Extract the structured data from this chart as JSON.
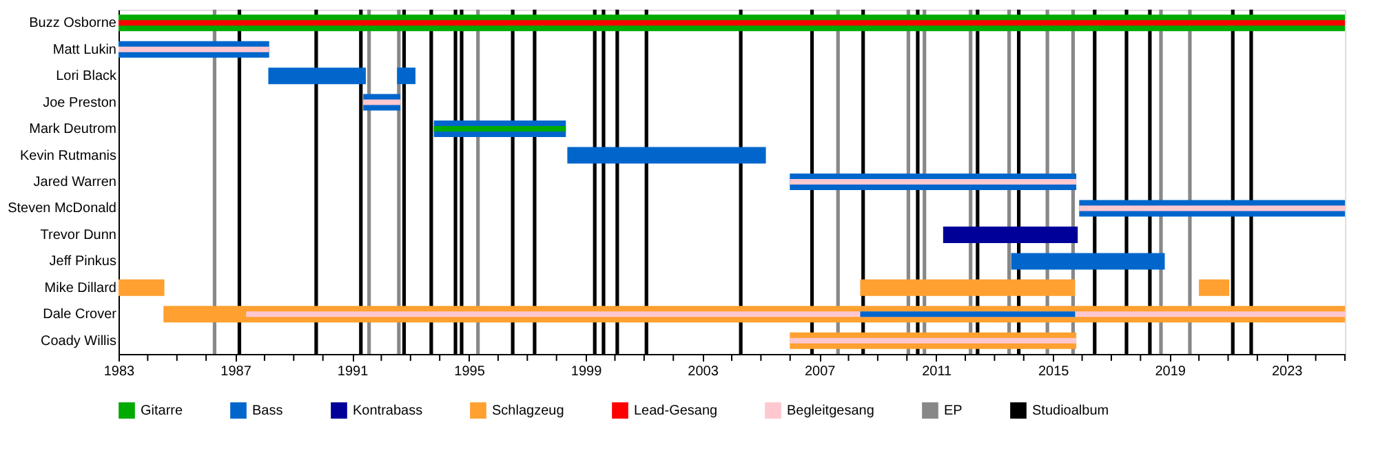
{
  "chart_data": {
    "type": "bar",
    "orientation": "horizontal",
    "categories": [
      "Buzz Osborne",
      "Matt Lukin",
      "Lori Black",
      "Joe Preston",
      "Mark Deutrom",
      "Kevin Rutmanis",
      "Jared Warren",
      "Steven McDonald",
      "Trevor Dunn",
      "Jeff Pinkus",
      "Mike Dillard",
      "Dale Crover",
      "Coady Willis"
    ],
    "series": [
      {
        "name": "Gitarre",
        "color": "#00aa00",
        "base": [
          1983,
          null,
          null,
          null,
          null,
          null,
          null,
          null,
          null,
          null,
          null,
          null,
          null
        ],
        "values": [
          42,
          null,
          null,
          null,
          null,
          null,
          null,
          null,
          null,
          null,
          null,
          null,
          null
        ]
      },
      {
        "name": "Bass",
        "color": "#0066cc",
        "base": [
          null,
          1983,
          1988.13,
          1991.38,
          1993.8,
          1998.37,
          2005.99,
          2015.9,
          null,
          2013.57,
          null,
          null,
          null
        ],
        "values": [
          null,
          5.16,
          3.34,
          1.27,
          4.52,
          6.8,
          9.81,
          9.1,
          null,
          5.26,
          null,
          null,
          null
        ]
      },
      {
        "color": "#0066cc",
        "base": [
          null,
          null,
          1992.54,
          null,
          null,
          null,
          null,
          null,
          null,
          null,
          null,
          null,
          null
        ],
        "values": [
          null,
          null,
          0.63,
          null,
          null,
          null,
          null,
          null,
          null,
          null,
          null,
          null,
          null
        ]
      },
      {
        "name": "Kontrabass",
        "color": "#000099",
        "base": [
          null,
          null,
          null,
          null,
          null,
          null,
          null,
          null,
          2011.24,
          null,
          null,
          null,
          null
        ],
        "values": [
          null,
          null,
          null,
          null,
          null,
          null,
          null,
          null,
          4.61,
          null,
          null,
          null,
          null
        ]
      },
      {
        "name": "Schlagzeug",
        "color": "#ffa030",
        "base": [
          null,
          null,
          null,
          null,
          null,
          null,
          null,
          null,
          null,
          null,
          1983,
          1984.54,
          2005.99
        ],
        "values": [
          null,
          null,
          null,
          null,
          null,
          null,
          null,
          null,
          null,
          null,
          1.57,
          40.46,
          9.81
        ]
      },
      {
        "color": "#ffa030",
        "base": [
          null,
          null,
          null,
          null,
          null,
          null,
          null,
          null,
          null,
          null,
          2008.4,
          null,
          null
        ],
        "values": [
          null,
          null,
          null,
          null,
          null,
          null,
          null,
          null,
          null,
          null,
          7.36,
          null,
          null
        ]
      },
      {
        "color": "#ffa030",
        "base": [
          null,
          null,
          null,
          null,
          null,
          null,
          null,
          null,
          null,
          null,
          2020.0,
          null,
          null
        ],
        "values": [
          null,
          null,
          null,
          null,
          null,
          null,
          null,
          null,
          null,
          null,
          1.04,
          null,
          null
        ]
      },
      {
        "name": "Lead-Gesang",
        "color": "#ff0000",
        "base": [
          1983,
          null,
          null,
          null,
          null,
          null,
          null,
          null,
          null,
          null,
          null,
          null,
          null
        ],
        "values": [
          42,
          null,
          null,
          null,
          null,
          null,
          null,
          null,
          null,
          null,
          null,
          null,
          null
        ]
      },
      {
        "name": "Begleitgesang",
        "color": "#ffc8d0",
        "base": [
          null,
          1983,
          null,
          1991.38,
          null,
          null,
          2005.99,
          2015.9,
          null,
          null,
          null,
          1987.37,
          2005.99
        ],
        "values": [
          null,
          5.16,
          null,
          1.27,
          null,
          null,
          9.81,
          9.1,
          null,
          null,
          null,
          37.63,
          9.81
        ]
      },
      {
        "color": "#00aa00",
        "base": [
          null,
          null,
          null,
          null,
          1993.8,
          null,
          null,
          null,
          null,
          null,
          null,
          null,
          null
        ],
        "values": [
          null,
          null,
          null,
          null,
          4.52,
          null,
          null,
          null,
          null,
          null,
          null,
          null,
          null
        ]
      },
      {
        "color": "#0066cc",
        "base": [
          null,
          null,
          null,
          null,
          null,
          null,
          null,
          null,
          null,
          null,
          null,
          2008.4,
          null
        ],
        "values": [
          null,
          null,
          null,
          null,
          null,
          null,
          null,
          null,
          null,
          null,
          null,
          7.36,
          null
        ]
      }
    ],
    "ref_lines": [
      {
        "axis": "x",
        "value": 1986.29,
        "label": "EP",
        "color": "#888888"
      },
      {
        "axis": "x",
        "value": 1987.14,
        "label": "Studioalbum",
        "color": "#000000"
      },
      {
        "axis": "x",
        "value": 1989.77,
        "color": "#000000"
      },
      {
        "axis": "x",
        "value": 1991.3,
        "color": "#000000"
      },
      {
        "axis": "x",
        "value": 1991.58,
        "color": "#888888"
      },
      {
        "axis": "x",
        "value": 1992.6,
        "color": "#888888"
      },
      {
        "axis": "x",
        "value": 1992.78,
        "color": "#000000"
      },
      {
        "axis": "x",
        "value": 1993.71,
        "color": "#000000"
      },
      {
        "axis": "x",
        "value": 1994.54,
        "color": "#000000"
      },
      {
        "axis": "x",
        "value": 1994.75,
        "color": "#000000"
      },
      {
        "axis": "x",
        "value": 1995.31,
        "color": "#888888"
      },
      {
        "axis": "x",
        "value": 1996.5,
        "color": "#000000"
      },
      {
        "axis": "x",
        "value": 1997.25,
        "color": "#000000"
      },
      {
        "axis": "x",
        "value": 1999.31,
        "color": "#000000"
      },
      {
        "axis": "x",
        "value": 1999.61,
        "color": "#000000"
      },
      {
        "axis": "x",
        "value": 2000.08,
        "color": "#000000"
      },
      {
        "axis": "x",
        "value": 2001.08,
        "color": "#000000"
      },
      {
        "axis": "x",
        "value": 2004.31,
        "color": "#000000"
      },
      {
        "axis": "x",
        "value": 2006.75,
        "color": "#000000"
      },
      {
        "axis": "x",
        "value": 2007.64,
        "color": "#888888"
      },
      {
        "axis": "x",
        "value": 2008.5,
        "color": "#000000"
      },
      {
        "axis": "x",
        "value": 2010.05,
        "color": "#888888"
      },
      {
        "axis": "x",
        "value": 2010.37,
        "color": "#000000"
      },
      {
        "axis": "x",
        "value": 2010.6,
        "color": "#888888"
      },
      {
        "axis": "x",
        "value": 2012.18,
        "color": "#888888"
      },
      {
        "axis": "x",
        "value": 2012.42,
        "color": "#000000"
      },
      {
        "axis": "x",
        "value": 2013.5,
        "color": "#888888"
      },
      {
        "axis": "x",
        "value": 2013.83,
        "color": "#000000"
      },
      {
        "axis": "x",
        "value": 2014.81,
        "color": "#888888"
      },
      {
        "axis": "x",
        "value": 2015.69,
        "color": "#888888"
      },
      {
        "axis": "x",
        "value": 2016.43,
        "color": "#000000"
      },
      {
        "axis": "x",
        "value": 2017.52,
        "color": "#000000"
      },
      {
        "axis": "x",
        "value": 2018.32,
        "color": "#000000"
      },
      {
        "axis": "x",
        "value": 2018.7,
        "color": "#888888"
      },
      {
        "axis": "x",
        "value": 2019.69,
        "color": "#888888"
      },
      {
        "axis": "x",
        "value": 2021.16,
        "color": "#000000"
      },
      {
        "axis": "x",
        "value": 2021.79,
        "color": "#000000"
      }
    ],
    "xlim": [
      1983,
      2025
    ],
    "xticks": [
      1983,
      {
        "value": 1984,
        "label": null
      },
      {
        "value": 1985,
        "label": null
      },
      {
        "value": 1986,
        "label": null
      },
      1987,
      {
        "value": 1988,
        "label": null
      },
      {
        "value": 1989,
        "label": null
      },
      {
        "value": 1990,
        "label": null
      },
      1991,
      {
        "value": 1992,
        "label": null
      },
      {
        "value": 1993,
        "label": null
      },
      {
        "value": 1994,
        "label": null
      },
      1995,
      {
        "value": 1996,
        "label": null
      },
      {
        "value": 1997,
        "label": null
      },
      {
        "value": 1998,
        "label": null
      },
      1999,
      {
        "value": 2000,
        "label": null
      },
      {
        "value": 2001,
        "label": null
      },
      {
        "value": 2002,
        "label": null
      },
      2003,
      {
        "value": 2004,
        "label": null
      },
      {
        "value": 2005,
        "label": null
      },
      {
        "value": 2006,
        "label": null
      },
      2007,
      {
        "value": 2008,
        "label": null
      },
      {
        "value": 2009,
        "label": null
      },
      {
        "value": 2010,
        "label": null
      },
      2011,
      {
        "value": 2012,
        "label": null
      },
      {
        "value": 2013,
        "label": null
      },
      {
        "value": 2014,
        "label": null
      },
      2015,
      {
        "value": 2016,
        "label": null
      },
      {
        "value": 2017,
        "label": null
      },
      {
        "value": 2018,
        "label": null
      },
      2019,
      {
        "value": 2020,
        "label": null
      },
      {
        "value": 2021,
        "label": null
      },
      {
        "value": 2022,
        "label": null
      },
      2023,
      {
        "value": 2024,
        "label": null
      },
      {
        "value": 2025,
        "label": null
      }
    ],
    "grid": false,
    "legend": "bottom"
  }
}
